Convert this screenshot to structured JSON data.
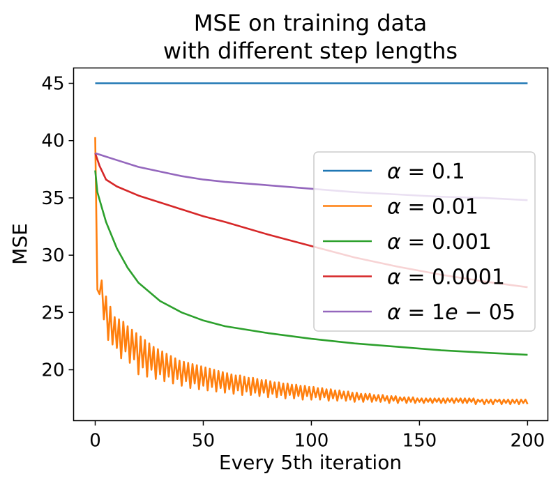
{
  "chart_data": {
    "type": "line",
    "title": "MSE on training data\nwith different step lengths",
    "title_lines": [
      "MSE on training data",
      "with different step lengths"
    ],
    "xlabel": "Every 5th iteration",
    "ylabel": "MSE",
    "xlim": [
      -10,
      209.4
    ],
    "ylim": [
      15.56,
      46.34
    ],
    "xticks": [
      0,
      50,
      100,
      150,
      200
    ],
    "yticks": [
      20,
      25,
      30,
      35,
      40,
      45
    ],
    "grid": false,
    "legend_position": "center-right",
    "series": [
      {
        "name": "α = 0.1",
        "label_parts": [
          "α",
          " = 0.1"
        ],
        "color": "#1f77b4",
        "x": [
          0,
          200
        ],
        "y": [
          45.0,
          45.0
        ]
      },
      {
        "name": "α = 0.01",
        "label_parts": [
          "α",
          " = 0.01"
        ],
        "color": "#ff7f0e",
        "y": [
          40.3,
          27.0,
          26.6,
          27.8,
          24.4,
          26.4,
          22.6,
          25.5,
          22.2,
          24.6,
          21.9,
          24.4,
          21.0,
          24.2,
          21.6,
          23.8,
          20.6,
          23.5,
          20.9,
          23.2,
          19.6,
          22.9,
          20.2,
          22.6,
          19.4,
          22.3,
          20.0,
          22.0,
          19.2,
          21.8,
          19.6,
          21.6,
          19.0,
          21.4,
          19.4,
          21.2,
          18.8,
          21.0,
          19.2,
          20.8,
          18.6,
          20.7,
          19.0,
          20.6,
          18.4,
          20.5,
          18.8,
          20.4,
          18.3,
          20.3,
          18.6,
          20.2,
          18.2,
          20.1,
          18.5,
          20.0,
          18.1,
          19.9,
          18.4,
          19.8,
          18.0,
          19.7,
          18.3,
          19.6,
          17.9,
          19.5,
          18.2,
          19.5,
          17.8,
          19.4,
          18.1,
          19.3,
          17.8,
          19.3,
          18.0,
          19.2,
          17.7,
          19.1,
          18.0,
          19.1,
          17.6,
          19.0,
          17.9,
          18.9,
          17.6,
          18.9,
          17.8,
          18.8,
          17.5,
          18.8,
          17.8,
          18.7,
          17.5,
          18.7,
          17.7,
          18.6,
          17.4,
          18.6,
          17.7,
          18.5,
          17.4,
          18.5,
          17.6,
          18.4,
          17.4,
          18.4,
          17.6,
          18.3,
          17.3,
          18.3,
          17.5,
          18.2,
          17.3,
          18.2,
          17.5,
          18.1,
          17.3,
          18.1,
          17.4,
          18.0,
          17.2,
          18.0,
          17.4,
          17.9,
          17.2,
          17.9,
          17.4,
          17.9,
          17.2,
          17.8,
          17.3,
          17.8,
          17.2,
          17.8,
          17.3,
          17.7,
          17.1,
          17.7,
          17.3,
          17.7,
          17.1,
          17.6,
          17.3,
          17.6,
          17.1,
          17.6,
          17.2,
          17.6,
          17.1,
          17.5,
          17.2,
          17.5,
          17.1,
          17.5,
          17.2,
          17.5,
          17.1,
          17.5,
          17.2,
          17.5,
          17.1,
          17.5,
          17.1,
          17.5,
          17.2,
          17.5,
          17.1,
          17.5,
          17.2,
          17.5,
          17.1,
          17.5,
          17.1,
          17.5,
          17.2,
          17.5,
          17.0,
          17.4,
          17.2,
          17.4,
          17.0,
          17.4,
          17.1,
          17.4,
          17.0,
          17.4,
          17.2,
          17.4,
          17.0,
          17.4,
          17.1,
          17.4,
          17.0,
          17.4,
          17.1,
          17.4,
          17.0,
          17.4,
          17.1,
          17.4,
          17.0
        ]
      },
      {
        "name": "α = 0.001",
        "label_parts": [
          "α",
          " = 0.001"
        ],
        "color": "#2ca02c",
        "x": [
          0,
          1,
          3,
          5,
          10,
          15,
          20,
          30,
          40,
          50,
          60,
          80,
          100,
          120,
          140,
          160,
          180,
          200
        ],
        "y": [
          37.4,
          35.5,
          34.2,
          32.9,
          30.6,
          28.9,
          27.6,
          26.0,
          25.0,
          24.3,
          23.8,
          23.2,
          22.7,
          22.3,
          22.0,
          21.7,
          21.5,
          21.3
        ]
      },
      {
        "name": "α = 0.0001",
        "label_parts": [
          "α",
          " = 0.0001"
        ],
        "color": "#d62728",
        "x": [
          0,
          2,
          5,
          10,
          20,
          30,
          40,
          50,
          60,
          80,
          100,
          120,
          140,
          160,
          180,
          200
        ],
        "y": [
          38.9,
          37.8,
          36.6,
          36.0,
          35.2,
          34.6,
          34.0,
          33.4,
          32.9,
          31.8,
          30.8,
          29.8,
          29.0,
          28.3,
          27.7,
          27.2
        ]
      },
      {
        "name": "α = 1e − 05",
        "label_parts": [
          "α",
          " = 1",
          "e",
          " − 05"
        ],
        "color": "#9467bd",
        "x": [
          0,
          5,
          10,
          20,
          30,
          40,
          50,
          60,
          80,
          100,
          120,
          140,
          160,
          180,
          200
        ],
        "y": [
          38.9,
          38.6,
          38.3,
          37.7,
          37.3,
          36.9,
          36.6,
          36.4,
          36.1,
          35.8,
          35.5,
          35.3,
          35.1,
          35.0,
          34.8
        ]
      }
    ]
  }
}
